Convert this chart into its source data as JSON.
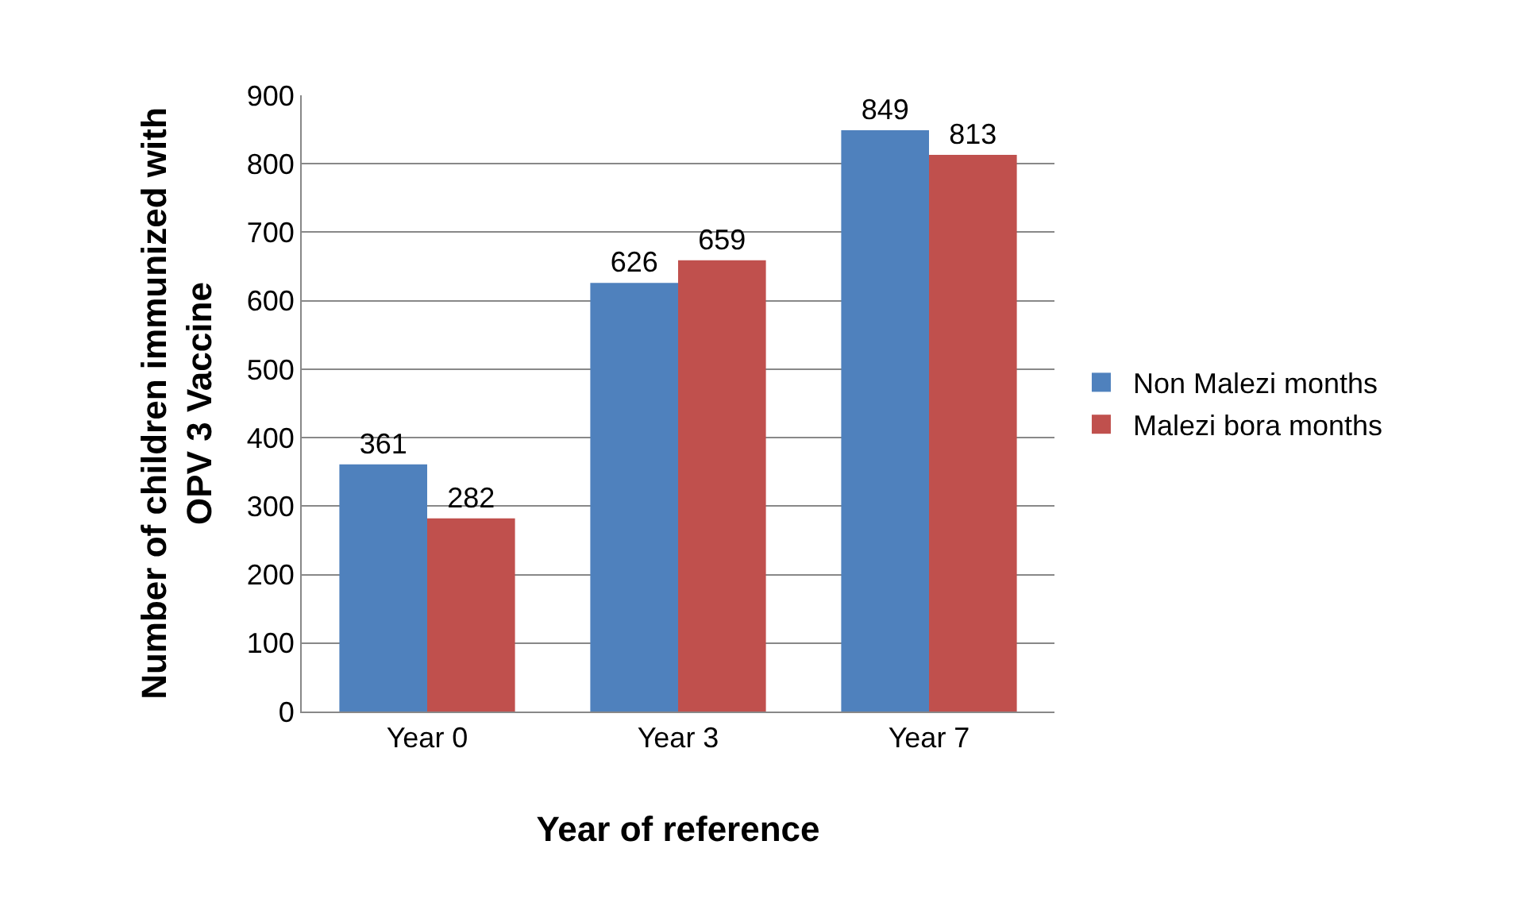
{
  "chart_data": {
    "type": "bar",
    "categories": [
      "Year 0",
      "Year 3",
      "Year 7"
    ],
    "series": [
      {
        "name": "Non Malezi months",
        "color": "#4f81bd",
        "values": [
          361,
          626,
          849
        ]
      },
      {
        "name": "Malezi bora months",
        "color": "#c0504d",
        "values": [
          282,
          659,
          813
        ]
      }
    ],
    "xlabel": "Year of reference",
    "ylabel": "Number of children immunized with OPV 3 Vaccine",
    "ylim": [
      0,
      900
    ],
    "yticks": [
      0,
      100,
      200,
      300,
      400,
      500,
      600,
      700,
      800,
      900
    ],
    "grid": "y",
    "legend": "right",
    "data_labels": true
  }
}
